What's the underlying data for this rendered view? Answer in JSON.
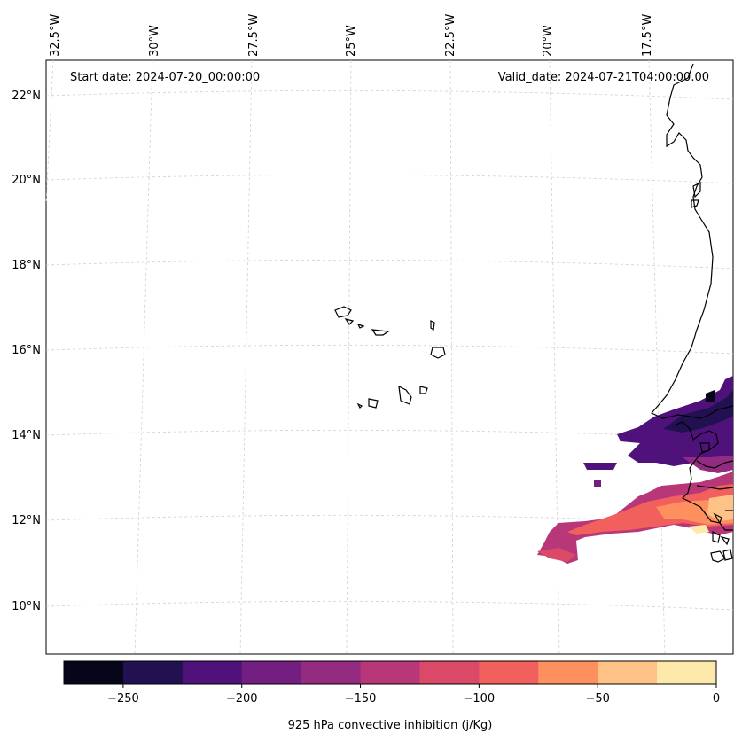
{
  "map": {
    "start_date_label": "Start date: 2024-07-20_00:00:00",
    "valid_date_label": "Valid_date: 2024-07-21T04:00:00.00",
    "lon_ticks": [
      "32.5°W",
      "30°W",
      "27.5°W",
      "25°W",
      "22.5°W",
      "20°W",
      "17.5°W"
    ],
    "lat_ticks": [
      "22°N",
      "20°N",
      "18°N",
      "16°N",
      "14°N",
      "12°N",
      "10°N"
    ]
  },
  "colorbar": {
    "label": "925 hPa convective inhibition (j/Kg)",
    "tick_labels": [
      "−250",
      "−200",
      "−150",
      "−100",
      "−50",
      "0"
    ],
    "colors": [
      "#06051a",
      "#221150",
      "#4f127b",
      "#721f81",
      "#932b80",
      "#b73779",
      "#da4a68",
      "#f1605d",
      "#fe8f5f",
      "#fec287",
      "#fde9a9"
    ],
    "range": [
      -275,
      0
    ]
  }
}
